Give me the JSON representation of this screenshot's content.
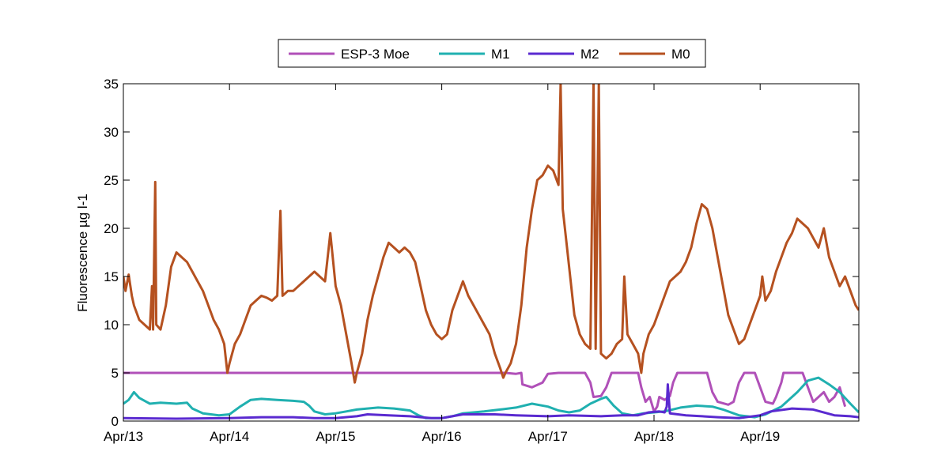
{
  "chart_data": {
    "type": "line",
    "xlabel": "",
    "ylabel": "Fluorescence µg l-1",
    "xlim": [
      0,
      6.93
    ],
    "ylim": [
      0,
      35
    ],
    "x_ticks": [
      0,
      1,
      2,
      3,
      4,
      5,
      6
    ],
    "x_tick_labels": [
      "Apr/13",
      "Apr/14",
      "Apr/15",
      "Apr/16",
      "Apr/17",
      "Apr/18",
      "Apr/19"
    ],
    "y_ticks": [
      0,
      5,
      10,
      15,
      20,
      25,
      30,
      35
    ],
    "y_tick_labels": [
      "0",
      "5",
      "10",
      "15",
      "20",
      "25",
      "30",
      "35"
    ],
    "grid": false,
    "legend": {
      "placement": "top-center",
      "orientation": "horizontal"
    },
    "series": [
      {
        "name": "ESP-3 Moe",
        "color": "#b050b8",
        "points": [
          [
            0,
            5
          ],
          [
            3.3,
            5
          ],
          [
            3.6,
            5
          ],
          [
            3.7,
            4.9
          ],
          [
            3.75,
            5
          ],
          [
            3.76,
            3.8
          ],
          [
            3.85,
            3.5
          ],
          [
            3.95,
            4.0
          ],
          [
            4.0,
            4.9
          ],
          [
            4.1,
            5
          ],
          [
            4.35,
            5
          ],
          [
            4.4,
            4.0
          ],
          [
            4.43,
            2.5
          ],
          [
            4.5,
            2.6
          ],
          [
            4.55,
            3.5
          ],
          [
            4.6,
            5
          ],
          [
            4.85,
            5
          ],
          [
            4.88,
            3.5
          ],
          [
            4.92,
            2.0
          ],
          [
            4.96,
            2.5
          ],
          [
            5.0,
            1.0
          ],
          [
            5.03,
            1.5
          ],
          [
            5.05,
            2.5
          ],
          [
            5.1,
            2.2
          ],
          [
            5.15,
            2.6
          ],
          [
            5.18,
            4.0
          ],
          [
            5.22,
            5
          ],
          [
            5.5,
            5
          ],
          [
            5.55,
            3.0
          ],
          [
            5.6,
            2.0
          ],
          [
            5.7,
            1.7
          ],
          [
            5.75,
            2.0
          ],
          [
            5.8,
            4.0
          ],
          [
            5.85,
            5
          ],
          [
            5.95,
            5
          ],
          [
            6.0,
            3.5
          ],
          [
            6.05,
            2.0
          ],
          [
            6.12,
            1.8
          ],
          [
            6.15,
            2.5
          ],
          [
            6.2,
            4.0
          ],
          [
            6.22,
            5
          ],
          [
            6.4,
            5
          ],
          [
            6.45,
            3.5
          ],
          [
            6.5,
            2.0
          ],
          [
            6.55,
            2.5
          ],
          [
            6.6,
            3.0
          ],
          [
            6.65,
            2.0
          ],
          [
            6.7,
            2.5
          ],
          [
            6.75,
            3.5
          ],
          [
            6.8,
            1.5
          ]
        ]
      },
      {
        "name": "M1",
        "color": "#20b0b0",
        "points": [
          [
            0,
            1.8
          ],
          [
            0.05,
            2.2
          ],
          [
            0.1,
            3.0
          ],
          [
            0.15,
            2.4
          ],
          [
            0.25,
            1.8
          ],
          [
            0.35,
            1.9
          ],
          [
            0.5,
            1.8
          ],
          [
            0.6,
            1.9
          ],
          [
            0.65,
            1.3
          ],
          [
            0.75,
            0.8
          ],
          [
            0.9,
            0.6
          ],
          [
            1.0,
            0.7
          ],
          [
            1.1,
            1.5
          ],
          [
            1.2,
            2.2
          ],
          [
            1.3,
            2.3
          ],
          [
            1.45,
            2.2
          ],
          [
            1.6,
            2.1
          ],
          [
            1.7,
            2.0
          ],
          [
            1.75,
            1.6
          ],
          [
            1.8,
            1.0
          ],
          [
            1.9,
            0.7
          ],
          [
            2.0,
            0.8
          ],
          [
            2.1,
            1.0
          ],
          [
            2.2,
            1.2
          ],
          [
            2.4,
            1.4
          ],
          [
            2.55,
            1.3
          ],
          [
            2.7,
            1.1
          ],
          [
            2.78,
            0.6
          ],
          [
            2.85,
            0.3
          ],
          [
            3.0,
            0.3
          ],
          [
            3.1,
            0.5
          ],
          [
            3.2,
            0.8
          ],
          [
            3.4,
            1.0
          ],
          [
            3.55,
            1.2
          ],
          [
            3.7,
            1.4
          ],
          [
            3.85,
            1.8
          ],
          [
            4.0,
            1.5
          ],
          [
            4.1,
            1.1
          ],
          [
            4.2,
            0.9
          ],
          [
            4.3,
            1.1
          ],
          [
            4.4,
            1.8
          ],
          [
            4.5,
            2.3
          ],
          [
            4.55,
            2.5
          ],
          [
            4.62,
            1.6
          ],
          [
            4.7,
            0.8
          ],
          [
            4.8,
            0.6
          ],
          [
            4.9,
            0.8
          ],
          [
            5.0,
            0.9
          ],
          [
            5.1,
            1.0
          ],
          [
            5.25,
            1.4
          ],
          [
            5.4,
            1.6
          ],
          [
            5.55,
            1.5
          ],
          [
            5.65,
            1.2
          ],
          [
            5.8,
            0.6
          ],
          [
            5.95,
            0.4
          ],
          [
            6.05,
            0.7
          ],
          [
            6.2,
            1.5
          ],
          [
            6.35,
            3.0
          ],
          [
            6.45,
            4.2
          ],
          [
            6.55,
            4.5
          ],
          [
            6.65,
            3.8
          ],
          [
            6.75,
            3.0
          ],
          [
            6.85,
            1.8
          ],
          [
            6.93,
            0.9
          ]
        ]
      },
      {
        "name": "M2",
        "color": "#5a2ad0",
        "points": [
          [
            0,
            0.3
          ],
          [
            0.5,
            0.25
          ],
          [
            1.0,
            0.3
          ],
          [
            1.3,
            0.4
          ],
          [
            1.6,
            0.4
          ],
          [
            1.8,
            0.3
          ],
          [
            2.0,
            0.3
          ],
          [
            2.2,
            0.5
          ],
          [
            2.3,
            0.7
          ],
          [
            2.5,
            0.6
          ],
          [
            2.7,
            0.5
          ],
          [
            2.9,
            0.3
          ],
          [
            3.0,
            0.3
          ],
          [
            3.1,
            0.5
          ],
          [
            3.2,
            0.7
          ],
          [
            3.5,
            0.7
          ],
          [
            3.7,
            0.6
          ],
          [
            4.0,
            0.5
          ],
          [
            4.2,
            0.6
          ],
          [
            4.5,
            0.5
          ],
          [
            4.7,
            0.6
          ],
          [
            4.85,
            0.6
          ],
          [
            4.95,
            0.9
          ],
          [
            5.05,
            1.0
          ],
          [
            5.1,
            0.9
          ],
          [
            5.12,
            1.5
          ],
          [
            5.13,
            3.8
          ],
          [
            5.15,
            0.8
          ],
          [
            5.3,
            0.6
          ],
          [
            5.6,
            0.4
          ],
          [
            5.8,
            0.3
          ],
          [
            6.0,
            0.6
          ],
          [
            6.1,
            1.0
          ],
          [
            6.3,
            1.3
          ],
          [
            6.5,
            1.2
          ],
          [
            6.7,
            0.6
          ],
          [
            6.85,
            0.5
          ],
          [
            6.93,
            0.4
          ]
        ]
      },
      {
        "name": "M0",
        "color": "#b55120",
        "points": [
          [
            0,
            15.0
          ],
          [
            0.02,
            13.5
          ],
          [
            0.05,
            15.2
          ],
          [
            0.08,
            13.0
          ],
          [
            0.1,
            12.0
          ],
          [
            0.15,
            10.5
          ],
          [
            0.2,
            10.0
          ],
          [
            0.25,
            9.5
          ],
          [
            0.27,
            14.0
          ],
          [
            0.28,
            9.5
          ],
          [
            0.3,
            24.8
          ],
          [
            0.31,
            10.0
          ],
          [
            0.35,
            9.5
          ],
          [
            0.4,
            12.0
          ],
          [
            0.45,
            16.0
          ],
          [
            0.5,
            17.5
          ],
          [
            0.55,
            17.0
          ],
          [
            0.6,
            16.5
          ],
          [
            0.65,
            15.5
          ],
          [
            0.7,
            14.5
          ],
          [
            0.75,
            13.5
          ],
          [
            0.8,
            12.0
          ],
          [
            0.85,
            10.5
          ],
          [
            0.9,
            9.5
          ],
          [
            0.95,
            8.0
          ],
          [
            0.98,
            5.0
          ],
          [
            1.0,
            6.0
          ],
          [
            1.05,
            8.0
          ],
          [
            1.1,
            9.0
          ],
          [
            1.15,
            10.5
          ],
          [
            1.2,
            12.0
          ],
          [
            1.25,
            12.5
          ],
          [
            1.3,
            13.0
          ],
          [
            1.35,
            12.8
          ],
          [
            1.4,
            12.5
          ],
          [
            1.45,
            13.0
          ],
          [
            1.48,
            21.8
          ],
          [
            1.5,
            13.0
          ],
          [
            1.55,
            13.5
          ],
          [
            1.6,
            13.5
          ],
          [
            1.65,
            14.0
          ],
          [
            1.7,
            14.5
          ],
          [
            1.75,
            15.0
          ],
          [
            1.8,
            15.5
          ],
          [
            1.85,
            15.0
          ],
          [
            1.9,
            14.5
          ],
          [
            1.95,
            19.5
          ],
          [
            2.0,
            14.0
          ],
          [
            2.05,
            12.0
          ],
          [
            2.1,
            9.0
          ],
          [
            2.15,
            6.0
          ],
          [
            2.18,
            4.0
          ],
          [
            2.2,
            5.0
          ],
          [
            2.25,
            7.0
          ],
          [
            2.3,
            10.5
          ],
          [
            2.35,
            13.0
          ],
          [
            2.4,
            15.0
          ],
          [
            2.45,
            17.0
          ],
          [
            2.5,
            18.5
          ],
          [
            2.55,
            18.0
          ],
          [
            2.6,
            17.5
          ],
          [
            2.65,
            18.0
          ],
          [
            2.7,
            17.5
          ],
          [
            2.75,
            16.5
          ],
          [
            2.8,
            14.0
          ],
          [
            2.85,
            11.5
          ],
          [
            2.9,
            10.0
          ],
          [
            2.95,
            9.0
          ],
          [
            3.0,
            8.5
          ],
          [
            3.05,
            9.0
          ],
          [
            3.1,
            11.5
          ],
          [
            3.15,
            13.0
          ],
          [
            3.2,
            14.5
          ],
          [
            3.25,
            13.0
          ],
          [
            3.3,
            12.0
          ],
          [
            3.35,
            11.0
          ],
          [
            3.4,
            10.0
          ],
          [
            3.45,
            9.0
          ],
          [
            3.5,
            7.0
          ],
          [
            3.55,
            5.5
          ],
          [
            3.58,
            4.5
          ],
          [
            3.6,
            5.0
          ],
          [
            3.65,
            6.0
          ],
          [
            3.7,
            8.0
          ],
          [
            3.75,
            12.0
          ],
          [
            3.8,
            18.0
          ],
          [
            3.85,
            22.0
          ],
          [
            3.9,
            25.0
          ],
          [
            3.95,
            25.5
          ],
          [
            4.0,
            26.5
          ],
          [
            4.05,
            26.0
          ],
          [
            4.1,
            24.5
          ],
          [
            4.12,
            35.0
          ],
          [
            4.14,
            22.0
          ],
          [
            4.18,
            18.0
          ],
          [
            4.22,
            14.0
          ],
          [
            4.25,
            11.0
          ],
          [
            4.3,
            9.0
          ],
          [
            4.35,
            8.0
          ],
          [
            4.4,
            7.5
          ],
          [
            4.43,
            35.0
          ],
          [
            4.45,
            7.5
          ],
          [
            4.48,
            35.0
          ],
          [
            4.5,
            7.0
          ],
          [
            4.55,
            6.5
          ],
          [
            4.6,
            7.0
          ],
          [
            4.65,
            8.0
          ],
          [
            4.7,
            8.5
          ],
          [
            4.72,
            15.0
          ],
          [
            4.75,
            9.0
          ],
          [
            4.8,
            8.0
          ],
          [
            4.85,
            7.0
          ],
          [
            4.88,
            5.0
          ],
          [
            4.9,
            7.0
          ],
          [
            4.95,
            9.0
          ],
          [
            5.0,
            10.0
          ],
          [
            5.05,
            11.5
          ],
          [
            5.1,
            13.0
          ],
          [
            5.15,
            14.5
          ],
          [
            5.2,
            15.0
          ],
          [
            5.25,
            15.5
          ],
          [
            5.3,
            16.5
          ],
          [
            5.35,
            18.0
          ],
          [
            5.4,
            20.5
          ],
          [
            5.45,
            22.5
          ],
          [
            5.5,
            22.0
          ],
          [
            5.55,
            20.0
          ],
          [
            5.6,
            17.0
          ],
          [
            5.65,
            14.0
          ],
          [
            5.7,
            11.0
          ],
          [
            5.75,
            9.5
          ],
          [
            5.8,
            8.0
          ],
          [
            5.85,
            8.5
          ],
          [
            5.9,
            10.0
          ],
          [
            5.95,
            11.5
          ],
          [
            6.0,
            13.0
          ],
          [
            6.02,
            15.0
          ],
          [
            6.05,
            12.5
          ],
          [
            6.1,
            13.5
          ],
          [
            6.15,
            15.5
          ],
          [
            6.2,
            17.0
          ],
          [
            6.25,
            18.5
          ],
          [
            6.3,
            19.5
          ],
          [
            6.35,
            21.0
          ],
          [
            6.4,
            20.5
          ],
          [
            6.45,
            20.0
          ],
          [
            6.5,
            19.0
          ],
          [
            6.55,
            18.0
          ],
          [
            6.6,
            20.0
          ],
          [
            6.65,
            17.0
          ],
          [
            6.7,
            15.5
          ],
          [
            6.75,
            14.0
          ],
          [
            6.8,
            15.0
          ],
          [
            6.85,
            13.5
          ],
          [
            6.9,
            12.0
          ],
          [
            6.93,
            11.5
          ]
        ]
      }
    ]
  }
}
